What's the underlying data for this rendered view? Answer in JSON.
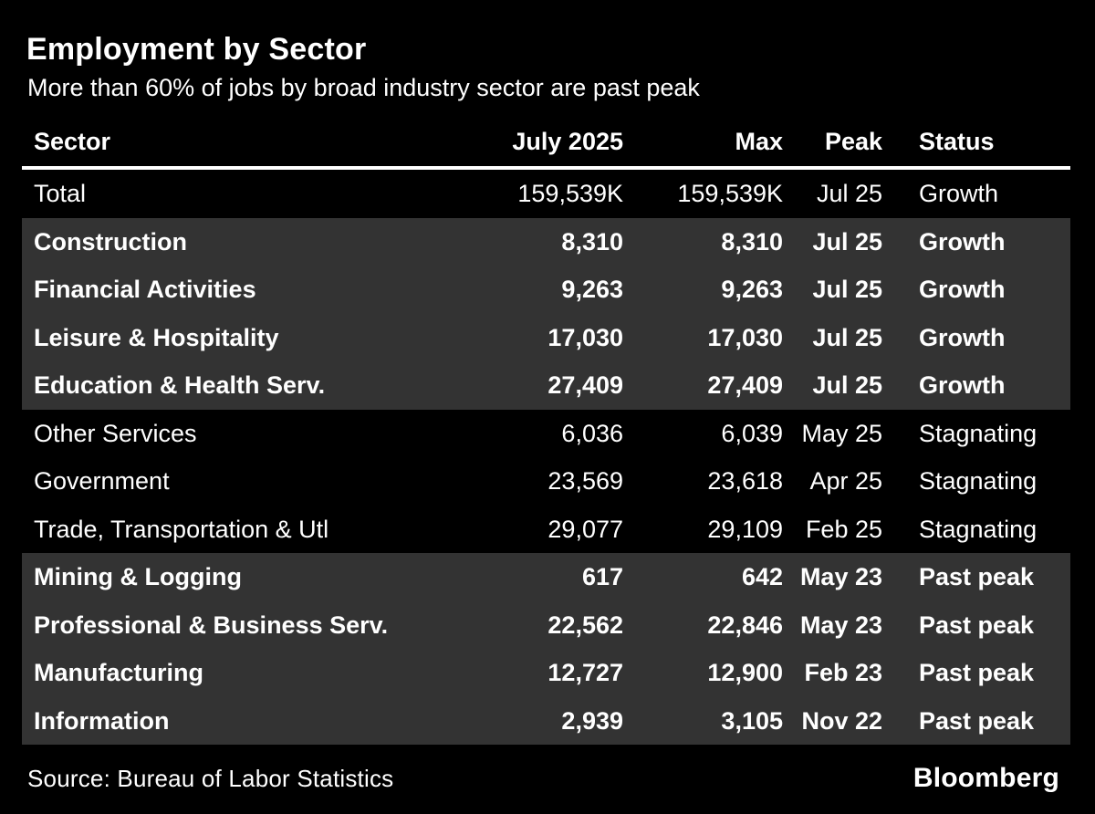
{
  "header": {
    "title": "Employment by Sector",
    "subtitle": "More than 60% of jobs by broad industry sector are past peak"
  },
  "footer": {
    "source": "Source: Bureau of Labor Statistics",
    "brand": "Bloomberg"
  },
  "colors": {
    "background": "#000000",
    "highlight_row": "#333333",
    "text": "#ffffff",
    "rule": "#ffffff"
  },
  "chart_data": {
    "type": "table",
    "title": "Employment by Sector",
    "subtitle": "More than 60% of jobs by broad industry sector are past peak",
    "columns": [
      "Sector",
      "July 2025",
      "Max",
      "Peak",
      "Status"
    ],
    "rows": [
      {
        "sector": "Total",
        "july_2025": "159,539K",
        "max": "159,539K",
        "peak": "Jul 25",
        "status": "Growth",
        "emphasized": false
      },
      {
        "sector": "Construction",
        "july_2025": "8,310",
        "max": "8,310",
        "peak": "Jul 25",
        "status": "Growth",
        "emphasized": true
      },
      {
        "sector": "Financial Activities",
        "july_2025": "9,263",
        "max": "9,263",
        "peak": "Jul 25",
        "status": "Growth",
        "emphasized": true
      },
      {
        "sector": "Leisure & Hospitality",
        "july_2025": "17,030",
        "max": "17,030",
        "peak": "Jul 25",
        "status": "Growth",
        "emphasized": true
      },
      {
        "sector": "Education & Health Serv.",
        "july_2025": "27,409",
        "max": "27,409",
        "peak": "Jul 25",
        "status": "Growth",
        "emphasized": true
      },
      {
        "sector": "Other Services",
        "july_2025": "6,036",
        "max": "6,039",
        "peak": "May 25",
        "status": "Stagnating",
        "emphasized": false
      },
      {
        "sector": "Government",
        "july_2025": "23,569",
        "max": "23,618",
        "peak": "Apr 25",
        "status": "Stagnating",
        "emphasized": false
      },
      {
        "sector": "Trade, Transportation & Utl",
        "july_2025": "29,077",
        "max": "29,109",
        "peak": "Feb 25",
        "status": "Stagnating",
        "emphasized": false
      },
      {
        "sector": "Mining & Logging",
        "july_2025": "617",
        "max": "642",
        "peak": "May 23",
        "status": "Past peak",
        "emphasized": true
      },
      {
        "sector": "Professional & Business Serv.",
        "july_2025": "22,562",
        "max": "22,846",
        "peak": "May 23",
        "status": "Past peak",
        "emphasized": true
      },
      {
        "sector": "Manufacturing",
        "july_2025": "12,727",
        "max": "12,900",
        "peak": "Feb 23",
        "status": "Past peak",
        "emphasized": true
      },
      {
        "sector": "Information",
        "july_2025": "2,939",
        "max": "3,105",
        "peak": "Nov 22",
        "status": "Past peak",
        "emphasized": true
      }
    ]
  }
}
